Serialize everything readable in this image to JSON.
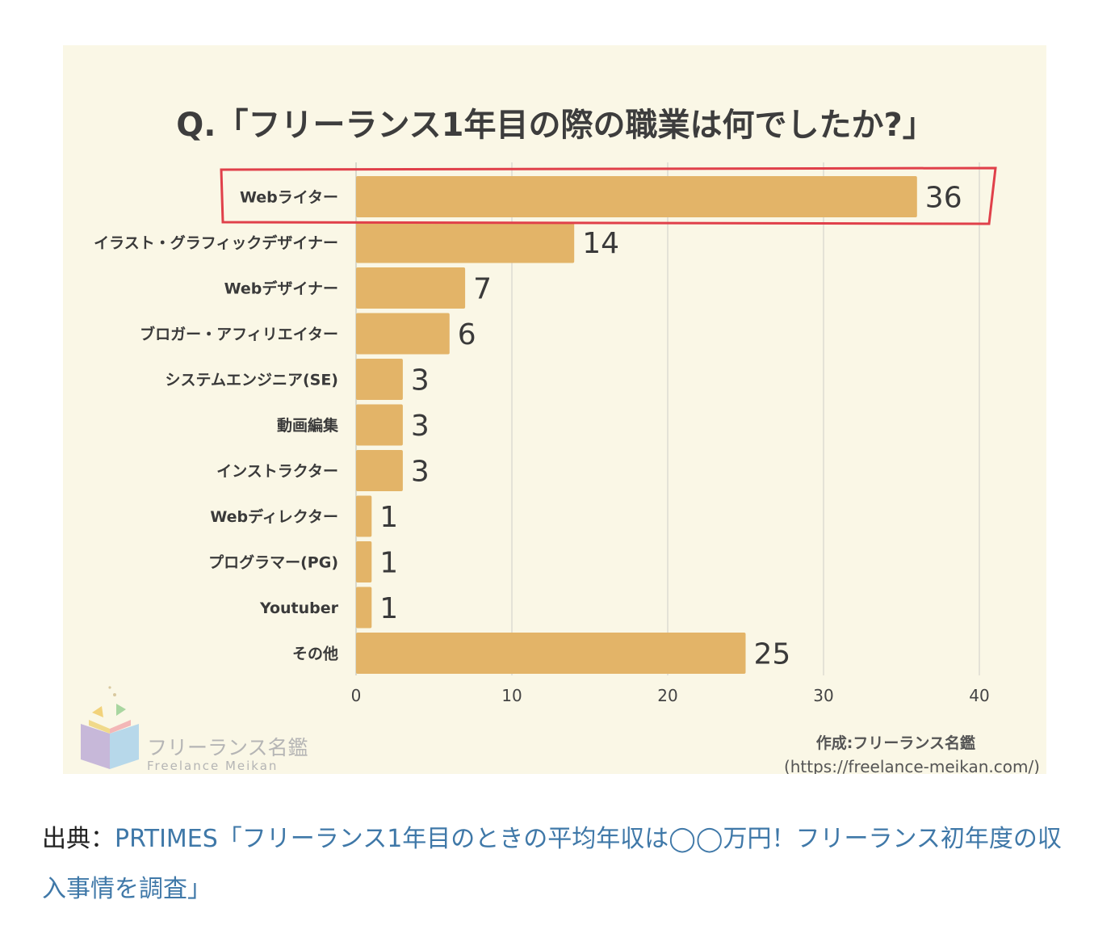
{
  "chart_data": {
    "type": "bar",
    "orientation": "horizontal",
    "title": "Q.「フリーランス1年目の際の職業は何でしたか?」",
    "categories": [
      "Webライター",
      "イラスト・グラフィックデザイナー",
      "Webデザイナー",
      "ブロガー・アフィリエイター",
      "システムエンジニア(SE)",
      "動画編集",
      "インストラクター",
      "Webディレクター",
      "プログラマー(PG)",
      "Youtuber",
      "その他"
    ],
    "values": [
      36,
      14,
      7,
      6,
      3,
      3,
      3,
      1,
      1,
      1,
      25
    ],
    "xlim": [
      0,
      40
    ],
    "xticks": [
      0,
      10,
      20,
      30,
      40
    ],
    "grid": "vertical",
    "highlighted_category": "Webライター",
    "colors": {
      "bar": "#e3b468",
      "highlight_box": "#e0404a",
      "background": "#faf7e6",
      "grid": "#dcdcd2"
    }
  },
  "credit": {
    "line1": "作成:フリーランス名鑑",
    "line2": "(https://freelance-meikan.com/)"
  },
  "logo": {
    "text_ja": "フリーランス名鑑",
    "text_en": "Freelance Meikan",
    "icon": "open-book-logo-icon"
  },
  "source": {
    "prefix": "出典：",
    "link_text": "PRTIMES「フリーランス1年目のときの平均年収は◯◯万円！フリーランス初年度の収入事情を調査」"
  }
}
